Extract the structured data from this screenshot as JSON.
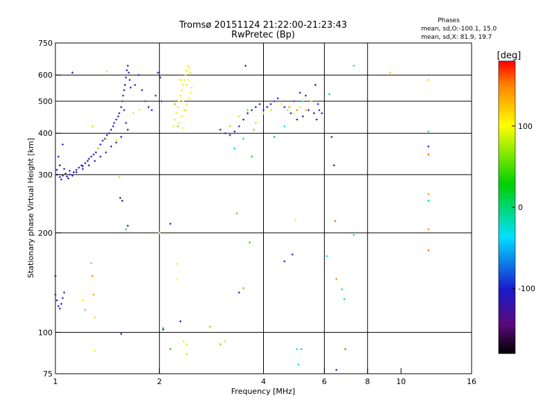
{
  "title": "Tromsø 20151124 21:22:00-21:23:43",
  "subtitle": "RwPretec (Bp)",
  "stats": {
    "header": "Phases",
    "line_o": "mean, sd,O:-100.1, 15.0",
    "line_x": "mean, sd,X:  81.9, 19.7"
  },
  "chart_data": {
    "type": "scatter",
    "xlabel": "Frequency [MHz]",
    "ylabel": "Stationary phase Virtual Height [km]",
    "xscale": "log",
    "yscale": "log",
    "xlim": [
      1,
      16
    ],
    "ylim": [
      75,
      750
    ],
    "xticks": [
      1,
      2,
      4,
      6,
      8,
      10,
      16
    ],
    "xgrid": [
      2,
      4,
      6,
      8
    ],
    "yticks": [
      75,
      100,
      200,
      300,
      400,
      500,
      600,
      750
    ],
    "ygrid": [
      100,
      200,
      300,
      400,
      500,
      600
    ],
    "grid": true,
    "colorbar": {
      "label": "[deg]",
      "min": -180,
      "max": 180,
      "ticks": [
        -100,
        0,
        100
      ]
    },
    "points": [
      [
        1.01,
        300,
        -110
      ],
      [
        1.03,
        295,
        -112
      ],
      [
        1.05,
        298,
        -108
      ],
      [
        1.07,
        302,
        -110
      ],
      [
        1.08,
        296,
        -115
      ],
      [
        1.1,
        300,
        -105
      ],
      [
        1.12,
        298,
        -110
      ],
      [
        1.13,
        305,
        -112
      ],
      [
        1.15,
        310,
        -108
      ],
      [
        1.17,
        315,
        -110
      ],
      [
        1.19,
        320,
        -106
      ],
      [
        1.2,
        318,
        -112
      ],
      [
        1.22,
        325,
        -110
      ],
      [
        1.24,
        330,
        -108
      ],
      [
        1.25,
        335,
        -112
      ],
      [
        1.27,
        340,
        -110
      ],
      [
        1.29,
        345,
        -104
      ],
      [
        1.31,
        350,
        -108
      ],
      [
        1.33,
        360,
        -110
      ],
      [
        1.35,
        370,
        -106
      ],
      [
        1.37,
        380,
        -112
      ],
      [
        1.39,
        385,
        -110
      ],
      [
        1.41,
        395,
        -108
      ],
      [
        1.43,
        400,
        -105
      ],
      [
        1.45,
        410,
        -110
      ],
      [
        1.47,
        420,
        -112
      ],
      [
        1.48,
        430,
        -108
      ],
      [
        1.5,
        440,
        -110
      ],
      [
        1.52,
        450,
        -106
      ],
      [
        1.53,
        460,
        -104
      ],
      [
        1.55,
        480,
        -110
      ],
      [
        1.56,
        500,
        -108
      ],
      [
        1.57,
        520,
        -112
      ],
      [
        1.58,
        540,
        -110
      ],
      [
        1.59,
        560,
        -106
      ],
      [
        1.6,
        590,
        -110
      ],
      [
        1.61,
        620,
        -108
      ],
      [
        1.62,
        640,
        -112
      ],
      [
        1.63,
        610,
        -110
      ],
      [
        1.64,
        580,
        -105
      ],
      [
        1.65,
        550,
        -108
      ],
      [
        1.58,
        470,
        -110
      ],
      [
        1.6,
        430,
        -106
      ],
      [
        1.62,
        410,
        -112
      ],
      [
        1.55,
        390,
        -110
      ],
      [
        1.5,
        375,
        -108
      ],
      [
        1.45,
        365,
        -110
      ],
      [
        1.4,
        350,
        -112
      ],
      [
        1.35,
        340,
        -106
      ],
      [
        1.3,
        330,
        -110
      ],
      [
        1.25,
        320,
        -108
      ],
      [
        1.2,
        312,
        -110
      ],
      [
        1.15,
        305,
        -112
      ],
      [
        1.1,
        308,
        -106
      ],
      [
        1.06,
        312,
        -110
      ],
      [
        1.03,
        320,
        -108
      ],
      [
        1.02,
        340,
        -110
      ],
      [
        1.01,
        310,
        -112
      ],
      [
        1.04,
        290,
        -106
      ],
      [
        1.09,
        292,
        -110
      ],
      [
        1.7,
        560,
        -108
      ],
      [
        1.74,
        600,
        -110
      ],
      [
        1.78,
        540,
        -106
      ],
      [
        1.82,
        500,
        -112
      ],
      [
        1.86,
        480,
        -110
      ],
      [
        1.9,
        470,
        -108
      ],
      [
        1.95,
        520,
        -110
      ],
      [
        1.98,
        610,
        -106
      ],
      [
        2.01,
        590,
        -112
      ],
      [
        2.03,
        500,
        -110
      ],
      [
        1.12,
        610,
        -110
      ],
      [
        1.05,
        370,
        -108
      ],
      [
        1.28,
        420,
        80
      ],
      [
        1.33,
        360,
        85
      ],
      [
        1.4,
        385,
        75
      ],
      [
        1.5,
        380,
        90
      ],
      [
        1.68,
        460,
        85
      ],
      [
        1.75,
        470,
        95
      ],
      [
        1.54,
        255,
        -110
      ],
      [
        1.56,
        250,
        -108
      ],
      [
        1.53,
        295,
        80
      ],
      [
        1.6,
        205,
        40
      ],
      [
        1.62,
        210,
        -105
      ],
      [
        2.2,
        420,
        90
      ],
      [
        2.22,
        440,
        95
      ],
      [
        2.24,
        460,
        92
      ],
      [
        2.26,
        480,
        88
      ],
      [
        2.28,
        500,
        96
      ],
      [
        2.3,
        520,
        90
      ],
      [
        2.32,
        540,
        94
      ],
      [
        2.34,
        560,
        90
      ],
      [
        2.36,
        580,
        92
      ],
      [
        2.38,
        600,
        88
      ],
      [
        2.4,
        620,
        96
      ],
      [
        2.42,
        640,
        90
      ],
      [
        2.44,
        630,
        94
      ],
      [
        2.46,
        610,
        90
      ],
      [
        2.28,
        430,
        92
      ],
      [
        2.32,
        450,
        88
      ],
      [
        2.36,
        470,
        96
      ],
      [
        2.4,
        490,
        90
      ],
      [
        2.44,
        510,
        94
      ],
      [
        2.46,
        530,
        90
      ],
      [
        2.48,
        550,
        92
      ],
      [
        2.3,
        580,
        88
      ],
      [
        2.34,
        500,
        96
      ],
      [
        2.22,
        490,
        60
      ],
      [
        2.26,
        420,
        70
      ],
      [
        2.35,
        415,
        95
      ],
      [
        2.4,
        560,
        92
      ],
      [
        2.38,
        470,
        88
      ],
      [
        2.42,
        580,
        96
      ],
      [
        3.0,
        410,
        -110
      ],
      [
        3.1,
        400,
        -108
      ],
      [
        3.2,
        395,
        -112
      ],
      [
        3.3,
        405,
        -110
      ],
      [
        3.4,
        420,
        -106
      ],
      [
        3.5,
        440,
        -110
      ],
      [
        3.6,
        460,
        -108
      ],
      [
        3.7,
        470,
        -112
      ],
      [
        3.8,
        480,
        -110
      ],
      [
        3.9,
        490,
        -106
      ],
      [
        4.0,
        470,
        -110
      ],
      [
        4.1,
        480,
        -108
      ],
      [
        4.2,
        490,
        -112
      ],
      [
        4.3,
        500,
        -110
      ],
      [
        4.4,
        510,
        -106
      ],
      [
        4.6,
        480,
        -110
      ],
      [
        4.8,
        460,
        -108
      ],
      [
        5.0,
        440,
        -112
      ],
      [
        5.2,
        450,
        -110
      ],
      [
        5.4,
        470,
        -106
      ],
      [
        5.6,
        460,
        -110
      ],
      [
        5.8,
        470,
        -108
      ],
      [
        5.5,
        500,
        -112
      ],
      [
        5.3,
        520,
        -110
      ],
      [
        5.1,
        530,
        -106
      ],
      [
        4.9,
        500,
        -110
      ],
      [
        5.7,
        440,
        -108
      ],
      [
        5.9,
        460,
        -112
      ],
      [
        5.75,
        490,
        -110
      ],
      [
        5.65,
        560,
        -106
      ],
      [
        3.2,
        420,
        70
      ],
      [
        3.4,
        450,
        85
      ],
      [
        3.6,
        470,
        60
      ],
      [
        3.8,
        430,
        75
      ],
      [
        4.0,
        460,
        90
      ],
      [
        4.2,
        470,
        80
      ],
      [
        4.5,
        490,
        95
      ],
      [
        4.7,
        470,
        85
      ],
      [
        4.9,
        460,
        100
      ],
      [
        5.1,
        480,
        90
      ],
      [
        5.3,
        470,
        130
      ],
      [
        5.5,
        500,
        80
      ],
      [
        3.5,
        385,
        -20
      ],
      [
        3.7,
        340,
        10
      ],
      [
        3.3,
        360,
        -10
      ],
      [
        4.3,
        390,
        20
      ],
      [
        4.6,
        420,
        -30
      ],
      [
        5.2,
        500,
        -20
      ],
      [
        3.55,
        640,
        -110
      ],
      [
        4.75,
        480,
        140
      ],
      [
        5.0,
        470,
        150
      ],
      [
        1.0,
        130,
        -110
      ],
      [
        1.01,
        125,
        -112
      ],
      [
        1.02,
        120,
        -108
      ],
      [
        1.03,
        118,
        -110
      ],
      [
        1.04,
        122,
        -106
      ],
      [
        1.05,
        127,
        -110
      ],
      [
        1.06,
        132,
        -108
      ],
      [
        1.0,
        148,
        -112
      ],
      [
        1.2,
        125,
        110
      ],
      [
        1.22,
        117,
        60
      ],
      [
        1.27,
        162,
        130
      ],
      [
        1.28,
        148,
        150
      ],
      [
        1.29,
        130,
        140
      ],
      [
        1.3,
        111,
        120
      ],
      [
        1.3,
        88,
        90
      ],
      [
        1.41,
        615,
        115
      ],
      [
        1.55,
        99,
        -110
      ],
      [
        2.0,
        200,
        100
      ],
      [
        2.05,
        103,
        -10
      ],
      [
        2.05,
        102,
        -100
      ],
      [
        2.15,
        213,
        -100
      ],
      [
        2.15,
        89,
        40
      ],
      [
        2.25,
        161,
        110
      ],
      [
        2.25,
        145,
        100
      ],
      [
        2.3,
        108,
        -110
      ],
      [
        2.35,
        94,
        90
      ],
      [
        2.4,
        92,
        110
      ],
      [
        2.4,
        86,
        80
      ],
      [
        2.8,
        104,
        140
      ],
      [
        3.0,
        92,
        60
      ],
      [
        3.1,
        94,
        80
      ],
      [
        3.35,
        229,
        150
      ],
      [
        3.4,
        132,
        -110
      ],
      [
        3.5,
        136,
        150
      ],
      [
        3.65,
        187,
        40
      ],
      [
        3.75,
        410,
        60
      ],
      [
        4.6,
        164,
        -110
      ],
      [
        4.85,
        172,
        -108
      ],
      [
        4.95,
        219,
        110
      ],
      [
        5.0,
        89,
        -20
      ],
      [
        5.05,
        80,
        -20
      ],
      [
        5.15,
        89,
        -20
      ],
      [
        6.1,
        170,
        -30
      ],
      [
        6.4,
        320,
        -130
      ],
      [
        6.45,
        217,
        160
      ],
      [
        6.5,
        145,
        150
      ],
      [
        6.5,
        77,
        -110
      ],
      [
        6.75,
        135,
        -10
      ],
      [
        6.85,
        126,
        -10
      ],
      [
        6.9,
        89,
        160
      ],
      [
        7.3,
        197,
        -10
      ],
      [
        7.3,
        640,
        -20
      ],
      [
        6.2,
        525,
        -10
      ],
      [
        6.3,
        390,
        -110
      ],
      [
        9.3,
        610,
        120
      ],
      [
        12,
        580,
        120
      ],
      [
        12,
        405,
        -10
      ],
      [
        12,
        365,
        -110
      ],
      [
        12,
        345,
        160
      ],
      [
        12,
        262,
        140
      ],
      [
        12,
        250,
        -10
      ],
      [
        12,
        205,
        150
      ],
      [
        12,
        177,
        160
      ]
    ]
  }
}
